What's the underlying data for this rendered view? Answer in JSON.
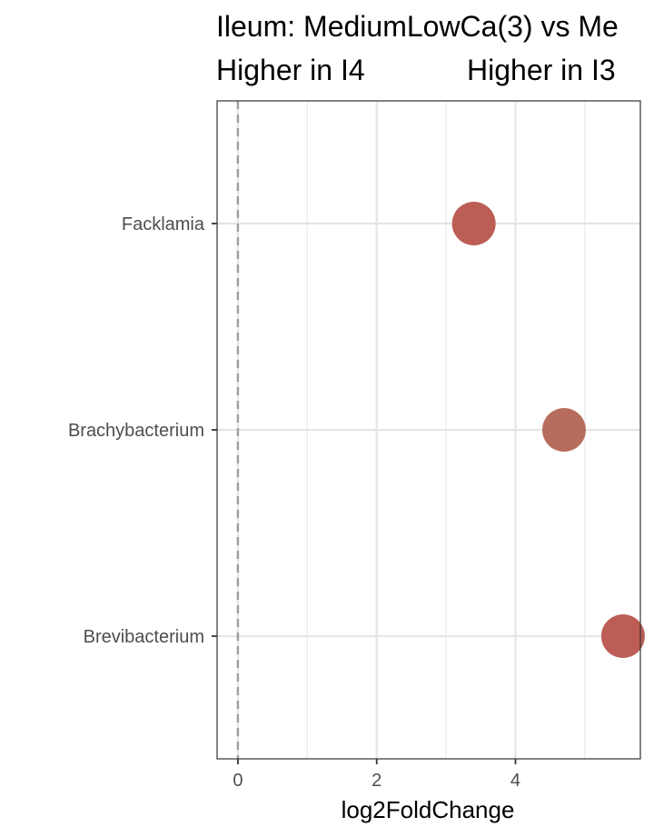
{
  "chart_data": {
    "type": "scatter",
    "title": "Ileum: MediumLowCa(3) vs Me",
    "subtitle_left": "Higher in I4",
    "subtitle_right": "Higher in I3",
    "xlabel": "log2FoldChange",
    "ylabel": "",
    "xlim": [
      -0.3,
      5.8
    ],
    "x_ticks": [
      0,
      2,
      4
    ],
    "categories": [
      "Facklamia",
      "Brachybacterium",
      "Brevibacterium"
    ],
    "points": [
      {
        "category": "Facklamia",
        "x": 3.4,
        "color": "#bc5d56"
      },
      {
        "category": "Brachybacterium",
        "x": 4.7,
        "color": "#b86d5c"
      },
      {
        "category": "Brevibacterium",
        "x": 5.55,
        "color": "#bc5d56"
      }
    ],
    "reference_line_x": 0,
    "grid": true,
    "legend": "none"
  }
}
